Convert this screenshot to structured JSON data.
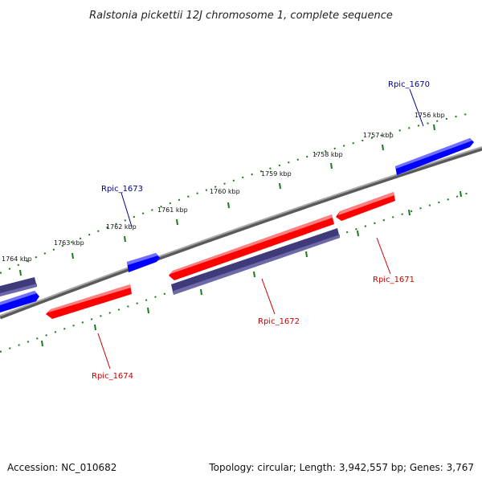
{
  "title": "Ralstonia pickettii 12J chromosome 1, complete sequence",
  "footer": {
    "accession": "Accession: NC_010682",
    "summary": "Topology: circular; Length: 3,942,557 bp; Genes: 3,767"
  },
  "ticks": [
    "1756 kbp",
    "1757 kbp",
    "1758 kbp",
    "1759 kbp",
    "1760 kbp",
    "1761 kbp",
    "1762 kbp",
    "1763 kbp",
    "1764 kbp"
  ],
  "genes": {
    "rpic_1670": {
      "label": "Rpic_1670"
    },
    "rpic_1671": {
      "label": "Rpic_1671"
    },
    "rpic_1672": {
      "label": "Rpic_1672"
    },
    "rpic_1673": {
      "label": "Rpic_1673"
    },
    "rpic_1674": {
      "label": "Rpic_1674"
    }
  },
  "colors": {
    "forward_gene": "#0000ff",
    "reverse_gene": "#ff0000",
    "other_gene": "#3f3a7a",
    "backbone": "#808080",
    "tick": "#1a7a1a",
    "label_forward": "#00008b",
    "label_reverse": "#cc0000"
  }
}
